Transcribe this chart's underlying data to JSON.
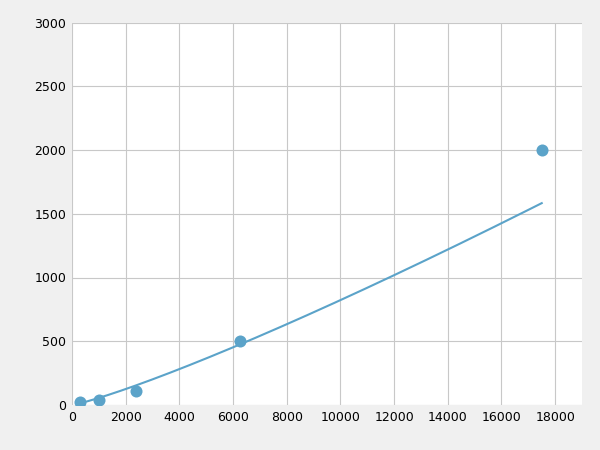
{
  "x": [
    300,
    1000,
    2400,
    6250,
    17500
  ],
  "y": [
    20,
    40,
    110,
    500,
    2000
  ],
  "xlim": [
    0,
    19000
  ],
  "ylim": [
    0,
    3000
  ],
  "xticks": [
    0,
    2000,
    4000,
    6000,
    8000,
    10000,
    12000,
    14000,
    16000,
    18000
  ],
  "yticks": [
    0,
    500,
    1000,
    1500,
    2000,
    2500,
    3000
  ],
  "line_color": "#5ba3c9",
  "marker_color": "#5ba3c9",
  "marker_size": 5,
  "grid_color": "#c8c8c8",
  "background_color": "#ffffff",
  "fig_background_color": "#f0f0f0"
}
